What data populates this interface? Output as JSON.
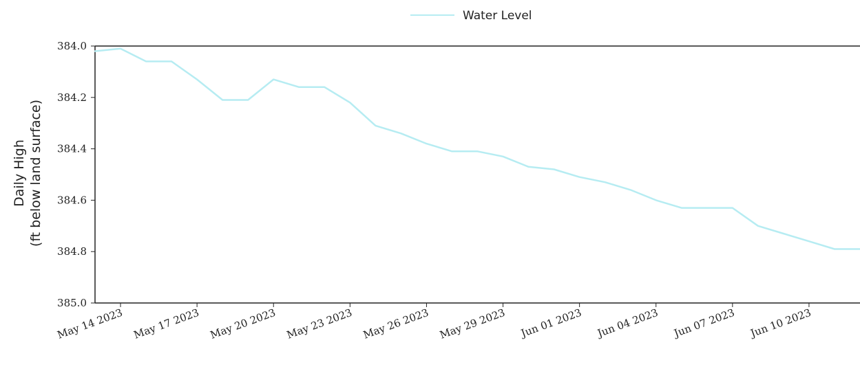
{
  "chart_data": {
    "type": "line",
    "title": "",
    "xlabel": "",
    "ylabel": [
      "Daily High",
      "(ft below land surface)"
    ],
    "y_inverted": true,
    "ylim": [
      384.0,
      385.0
    ],
    "yticks": [
      "384.0",
      "384.2",
      "384.4",
      "384.6",
      "384.8",
      "385.0"
    ],
    "xlim": [
      "2023-05-13",
      "2023-06-12"
    ],
    "xtick_labels": [
      "May 14 2023",
      "May 17 2023",
      "May 20 2023",
      "May 23 2023",
      "May 26 2023",
      "May 29 2023",
      "Jun 01 2023",
      "Jun 04 2023",
      "Jun 07 2023",
      "Jun 10 2023"
    ],
    "grid": false,
    "legend_position": "top-center",
    "series": [
      {
        "name": "Water Level",
        "color": "#b6ecf2",
        "x": [
          "2023-05-13",
          "2023-05-14",
          "2023-05-15",
          "2023-05-16",
          "2023-05-17",
          "2023-05-18",
          "2023-05-19",
          "2023-05-20",
          "2023-05-21",
          "2023-05-22",
          "2023-05-23",
          "2023-05-24",
          "2023-05-25",
          "2023-05-26",
          "2023-05-27",
          "2023-05-28",
          "2023-05-29",
          "2023-05-30",
          "2023-05-31",
          "2023-06-01",
          "2023-06-02",
          "2023-06-03",
          "2023-06-04",
          "2023-06-05",
          "2023-06-06",
          "2023-06-07",
          "2023-06-08",
          "2023-06-09",
          "2023-06-10",
          "2023-06-11",
          "2023-06-12"
        ],
        "y": [
          384.02,
          384.01,
          384.06,
          384.06,
          384.13,
          384.21,
          384.21,
          384.13,
          384.16,
          384.16,
          384.22,
          384.31,
          384.34,
          384.38,
          384.41,
          384.41,
          384.43,
          384.47,
          384.48,
          384.51,
          384.53,
          384.56,
          384.6,
          384.63,
          384.63,
          384.63,
          384.7,
          384.73,
          384.76,
          384.79,
          384.79
        ]
      }
    ]
  }
}
